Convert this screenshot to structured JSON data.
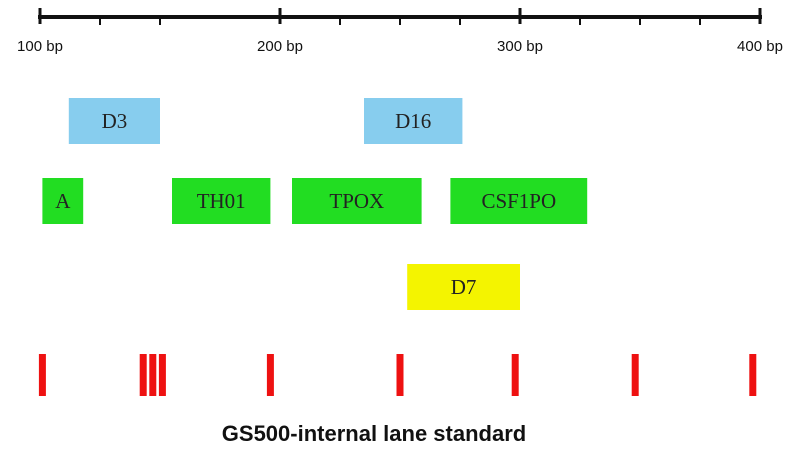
{
  "scale": {
    "unit": "bp",
    "min": 100,
    "max": 400,
    "major_ticks": [
      {
        "value": 100,
        "label": "100 bp"
      },
      {
        "value": 200,
        "label": "200 bp"
      },
      {
        "value": 300,
        "label": "300 bp"
      },
      {
        "value": 400,
        "label": "400 bp"
      }
    ],
    "minor_ticks": [
      125,
      150,
      225,
      250,
      275,
      325,
      350,
      375
    ]
  },
  "loci": [
    {
      "name": "D3",
      "start": 112,
      "end": 150,
      "row": 0,
      "color": "#87cdee"
    },
    {
      "name": "D16",
      "start": 235,
      "end": 276,
      "row": 0,
      "color": "#87cdee"
    },
    {
      "name": "A",
      "start": 101,
      "end": 118,
      "row": 1,
      "color": "#22dd22"
    },
    {
      "name": "TH01",
      "start": 155,
      "end": 196,
      "row": 1,
      "color": "#22dd22"
    },
    {
      "name": "TPOX",
      "start": 205,
      "end": 259,
      "row": 1,
      "color": "#22dd22"
    },
    {
      "name": "CSF1PO",
      "start": 271,
      "end": 328,
      "row": 1,
      "color": "#22dd22"
    },
    {
      "name": "D7",
      "start": 253,
      "end": 300,
      "row": 2,
      "color": "#f4f400"
    }
  ],
  "standard_bands": [
    101,
    143,
    147,
    151,
    196,
    250,
    298,
    348,
    397
  ],
  "band_color": "#ee1111",
  "caption": "GS500-internal lane standard"
}
